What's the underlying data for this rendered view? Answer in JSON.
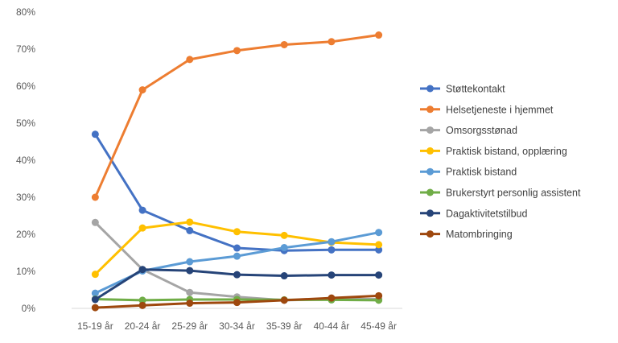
{
  "chart_data": {
    "type": "line",
    "title": "",
    "xlabel": "",
    "ylabel": "",
    "ylim": [
      0,
      80
    ],
    "y_ticks": [
      "0%",
      "10%",
      "20%",
      "30%",
      "40%",
      "50%",
      "60%",
      "70%",
      "80%"
    ],
    "grid": false,
    "legend_position": "right",
    "categories": [
      "15-19 år",
      "20-24 år",
      "25-29 år",
      "30-34 år",
      "35-39 år",
      "40-44 år",
      "45-49 år"
    ],
    "series": [
      {
        "name": "Støttekontakt",
        "color": "#4472C4",
        "values": [
          47,
          26.5,
          21,
          16.3,
          15.6,
          15.8,
          15.8
        ]
      },
      {
        "name": "Helsetjeneste i hjemmet",
        "color": "#ED7D31",
        "values": [
          30,
          59,
          67.2,
          69.6,
          71.2,
          72,
          73.8
        ]
      },
      {
        "name": "Omsorgsstønad",
        "color": "#A5A5A5",
        "values": [
          23.2,
          10.5,
          4.3,
          3.1,
          2.2,
          2.5,
          2.5
        ]
      },
      {
        "name": "Praktisk bistand, opplæring",
        "color": "#FFC000",
        "values": [
          9.2,
          21.7,
          23.3,
          20.7,
          19.7,
          17.8,
          17.2
        ]
      },
      {
        "name": "Praktisk bistand",
        "color": "#5B9BD5",
        "values": [
          4.1,
          10.1,
          12.6,
          14.1,
          16.4,
          18,
          20.5
        ]
      },
      {
        "name": "Brukerstyrt personlig assistent",
        "color": "#70AD47",
        "values": [
          2.5,
          2.2,
          2.4,
          2.4,
          2.3,
          2.3,
          2.2
        ]
      },
      {
        "name": "Dagaktivitetstilbud",
        "color": "#264478",
        "values": [
          2.4,
          10.5,
          10.2,
          9.1,
          8.8,
          9,
          9
        ]
      },
      {
        "name": "Matombringing",
        "color": "#9E480E",
        "values": [
          0.2,
          0.8,
          1.4,
          1.6,
          2.2,
          2.8,
          3.4
        ]
      }
    ]
  }
}
